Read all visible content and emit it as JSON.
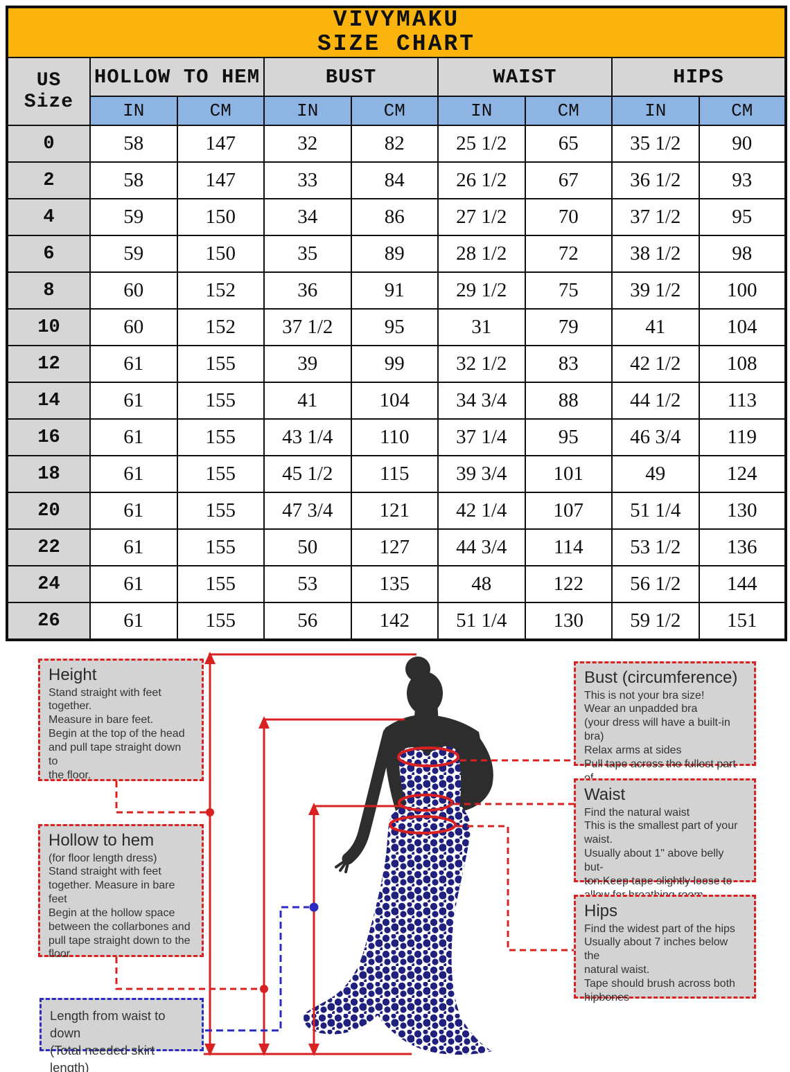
{
  "chart_data": {
    "type": "table",
    "title": "VIVYMAKU",
    "subtitle": "SIZE CHART",
    "corner_header": "US Size",
    "column_groups": [
      "HOLLOW TO HEM",
      "BUST",
      "WAIST",
      "HIPS"
    ],
    "unit_row": [
      "IN",
      "CM",
      "IN",
      "CM",
      "IN",
      "CM",
      "IN",
      "CM"
    ],
    "rows": [
      [
        "0",
        "58",
        "147",
        "32",
        "82",
        "25 1/2",
        "65",
        "35 1/2",
        "90"
      ],
      [
        "2",
        "58",
        "147",
        "33",
        "84",
        "26 1/2",
        "67",
        "36 1/2",
        "93"
      ],
      [
        "4",
        "59",
        "150",
        "34",
        "86",
        "27 1/2",
        "70",
        "37 1/2",
        "95"
      ],
      [
        "6",
        "59",
        "150",
        "35",
        "89",
        "28 1/2",
        "72",
        "38 1/2",
        "98"
      ],
      [
        "8",
        "60",
        "152",
        "36",
        "91",
        "29 1/2",
        "75",
        "39 1/2",
        "100"
      ],
      [
        "10",
        "60",
        "152",
        "37 1/2",
        "95",
        "31",
        "79",
        "41",
        "104"
      ],
      [
        "12",
        "61",
        "155",
        "39",
        "99",
        "32 1/2",
        "83",
        "42 1/2",
        "108"
      ],
      [
        "14",
        "61",
        "155",
        "41",
        "104",
        "34 3/4",
        "88",
        "44 1/2",
        "113"
      ],
      [
        "16",
        "61",
        "155",
        "43 1/4",
        "110",
        "37 1/4",
        "95",
        "46 3/4",
        "119"
      ],
      [
        "18",
        "61",
        "155",
        "45 1/2",
        "115",
        "39 3/4",
        "101",
        "49",
        "124"
      ],
      [
        "20",
        "61",
        "155",
        "47 3/4",
        "121",
        "42 1/4",
        "107",
        "51 1/4",
        "130"
      ],
      [
        "22",
        "61",
        "155",
        "50",
        "127",
        "44 3/4",
        "114",
        "53 1/2",
        "136"
      ],
      [
        "24",
        "61",
        "155",
        "53",
        "135",
        "48",
        "122",
        "56 1/2",
        "144"
      ],
      [
        "26",
        "61",
        "155",
        "56",
        "142",
        "51 1/4",
        "130",
        "59 1/2",
        "151"
      ]
    ]
  },
  "diagram": {
    "height": {
      "title": "Height",
      "body": "Stand straight with feet\ntogether.\nMeasure in bare feet.\nBegin at the top of the head\nand pull tape straight down to\nthe floor."
    },
    "hollow_to_hem": {
      "title": "Hollow to hem",
      "body": "(for floor length dress)\nStand straight with feet\ntogether. Measure in bare feet\nBegin at the hollow space\nbetween the collarbones and\npull tape straight down to the\nfloor"
    },
    "waist_length": {
      "body": "Length from waist to down\n(Total needed skirt length)"
    },
    "bust": {
      "title": "Bust (circumference)",
      "body": "This is not your bra size!\nWear an unpadded bra\n(your dress will have a built-in bra)\nRelax arms at sides\nPull tape across the fullest part of\nthe bust"
    },
    "waist": {
      "title": "Waist",
      "body": "Find the natural waist\nThis is the smallest part of your\nwaist.\nUsually about 1\" above belly but-\nton.Keep tape slightly loose to\nallow for breathing room."
    },
    "hips": {
      "title": "Hips",
      "body": "Find the widest part of the hips\nUsually about 7 inches below the\nnatural waist.\nTape should brush across both\nhipbones"
    }
  },
  "colors": {
    "header_yellow": "#FBB40E",
    "header_gray": "#D6D6D6",
    "header_blue": "#8DB4E2",
    "line_red": "#D92121",
    "dash_blue": "#2B2BC4",
    "dress_navy": "#20207E",
    "silhouette": "#2D2D2D"
  }
}
